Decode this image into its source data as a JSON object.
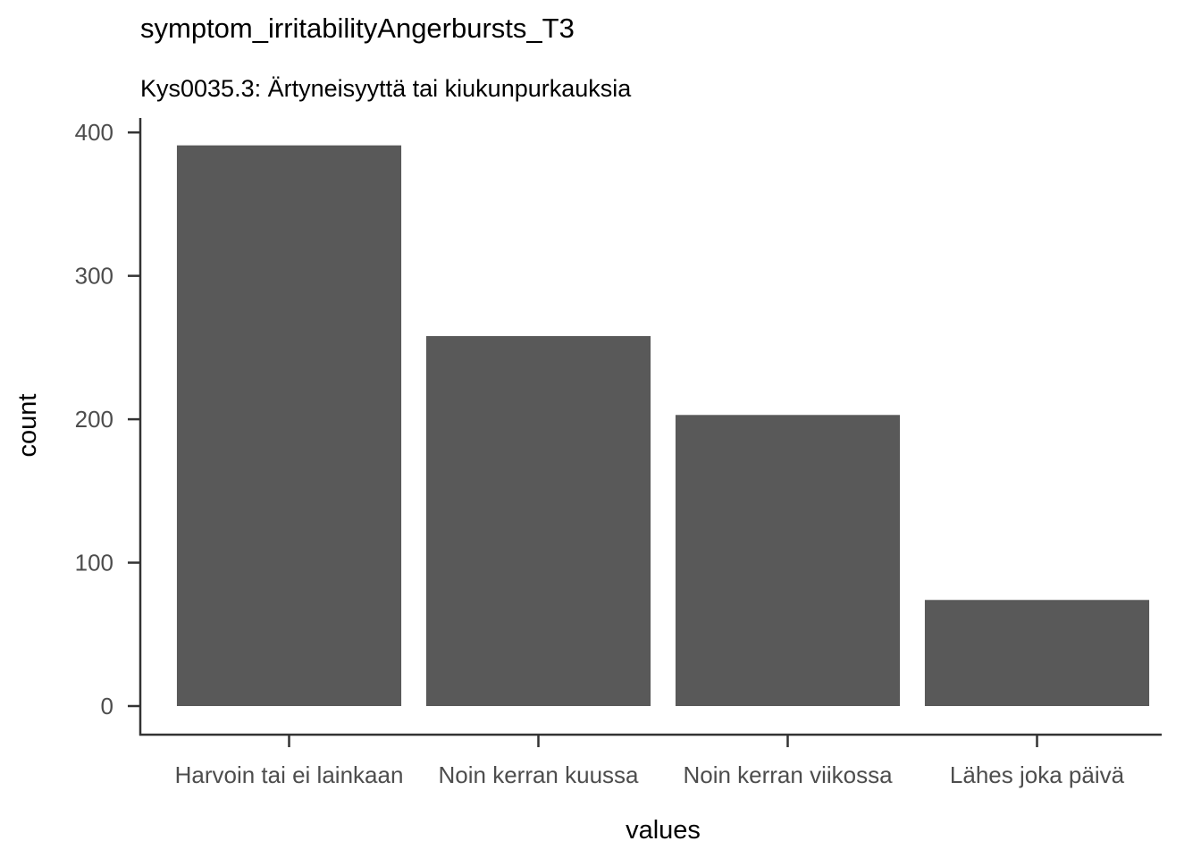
{
  "chart_data": {
    "type": "bar",
    "title": "symptom_irritabilityAngerbursts_T3",
    "subtitle": "Kys0035.3: Ärtyneisyyttä tai kiukunpurkauksia",
    "xlabel": "values",
    "ylabel": "count",
    "categories": [
      "Harvoin tai ei lainkaan",
      "Noin kerran kuussa",
      "Noin kerran viikossa",
      "Lähes joka päivä"
    ],
    "values": [
      391,
      258,
      203,
      74
    ],
    "ylim": [
      0,
      410
    ],
    "yticks": [
      "0",
      "100",
      "200",
      "300",
      "400"
    ],
    "bar_color": "#595959",
    "axis_color": "#333333",
    "grid": false,
    "legend": "none"
  }
}
